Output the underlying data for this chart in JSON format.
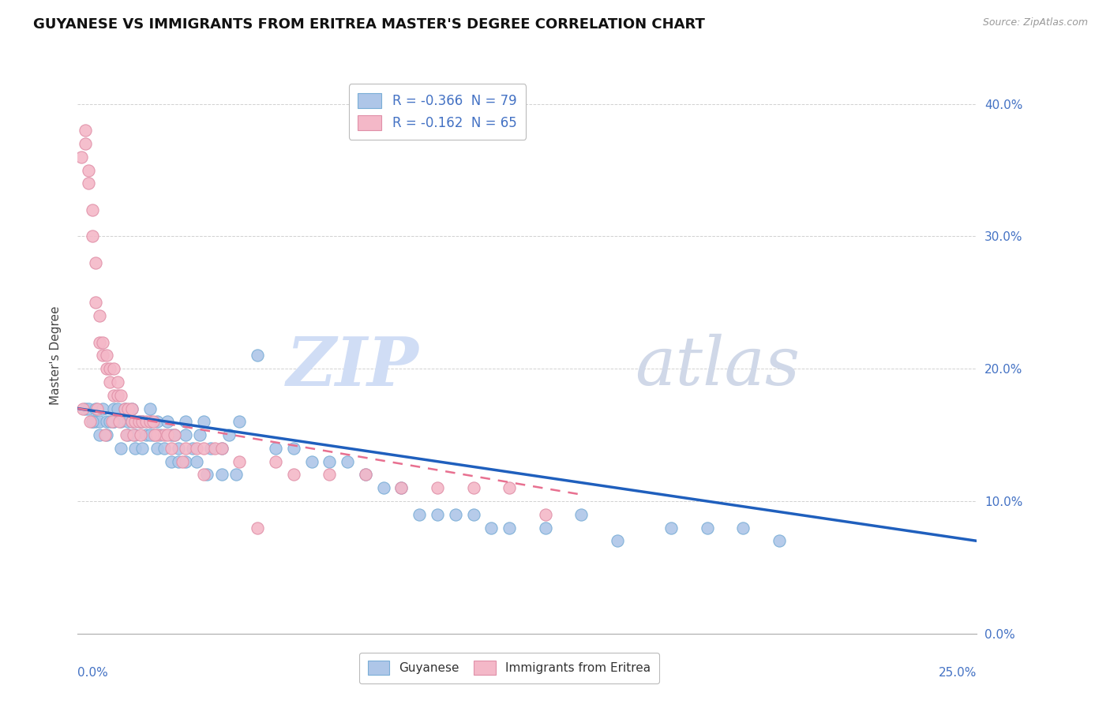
{
  "title": "GUYANESE VS IMMIGRANTS FROM ERITREA MASTER'S DEGREE CORRELATION CHART",
  "source": "Source: ZipAtlas.com",
  "ylabel": "Master's Degree",
  "xlim": [
    0.0,
    25.0
  ],
  "ylim": [
    0.0,
    42.0
  ],
  "ytick_labels": [
    "0.0%",
    "10.0%",
    "20.0%",
    "30.0%",
    "40.0%"
  ],
  "ytick_values": [
    0.0,
    10.0,
    20.0,
    30.0,
    40.0
  ],
  "legend_entries": [
    {
      "label": "R = -0.366  N = 79",
      "color": "#aec6e8"
    },
    {
      "label": "R = -0.162  N = 65",
      "color": "#f4b8c1"
    }
  ],
  "legend_label_guyanese": "Guyanese",
  "legend_label_eritrea": "Immigrants from Eritrea",
  "scatter_blue_x": [
    0.2,
    0.3,
    0.4,
    0.5,
    0.5,
    0.6,
    0.7,
    0.8,
    0.9,
    1.0,
    1.0,
    1.1,
    1.2,
    1.3,
    1.4,
    1.5,
    1.5,
    1.6,
    1.7,
    1.8,
    1.9,
    2.0,
    2.0,
    2.1,
    2.2,
    2.3,
    2.5,
    2.6,
    2.7,
    2.8,
    3.0,
    3.0,
    3.2,
    3.4,
    3.5,
    3.7,
    4.0,
    4.2,
    4.5,
    5.0,
    5.5,
    6.0,
    6.5,
    7.0,
    7.5,
    8.0,
    8.5,
    9.0,
    9.5,
    10.0,
    10.5,
    11.0,
    11.5,
    12.0,
    13.0,
    14.0,
    15.0,
    16.5,
    17.5,
    18.5,
    19.5,
    0.4,
    0.6,
    0.8,
    1.0,
    1.2,
    1.4,
    1.6,
    1.8,
    2.0,
    2.2,
    2.4,
    2.6,
    2.8,
    3.0,
    3.3,
    3.6,
    4.0,
    4.4
  ],
  "scatter_blue_y": [
    17,
    17,
    16,
    17,
    16,
    16,
    17,
    16,
    16,
    17,
    16,
    17,
    16,
    17,
    16,
    16,
    17,
    15,
    16,
    16,
    15,
    16,
    17,
    15,
    16,
    15,
    16,
    15,
    15,
    14,
    16,
    15,
    14,
    15,
    16,
    14,
    14,
    15,
    16,
    21,
    14,
    14,
    13,
    13,
    13,
    12,
    11,
    11,
    9,
    9,
    9,
    9,
    8,
    8,
    8,
    9,
    7,
    8,
    8,
    8,
    7,
    16,
    15,
    15,
    16,
    14,
    15,
    14,
    14,
    15,
    14,
    14,
    13,
    13,
    13,
    13,
    12,
    12,
    12
  ],
  "scatter_pink_x": [
    0.1,
    0.2,
    0.2,
    0.3,
    0.3,
    0.4,
    0.4,
    0.5,
    0.5,
    0.6,
    0.6,
    0.7,
    0.7,
    0.8,
    0.8,
    0.9,
    0.9,
    1.0,
    1.0,
    1.1,
    1.1,
    1.2,
    1.3,
    1.4,
    1.5,
    1.5,
    1.6,
    1.7,
    1.8,
    1.9,
    2.0,
    2.1,
    2.2,
    2.4,
    2.5,
    2.7,
    3.0,
    3.3,
    3.5,
    3.8,
    4.0,
    4.5,
    5.5,
    6.0,
    7.0,
    8.0,
    9.0,
    10.0,
    11.0,
    12.0,
    13.0,
    0.15,
    0.35,
    0.55,
    0.75,
    0.95,
    1.15,
    1.35,
    1.55,
    1.75,
    2.15,
    2.6,
    2.9,
    3.5,
    5.0
  ],
  "scatter_pink_y": [
    36,
    38,
    37,
    35,
    34,
    32,
    30,
    28,
    25,
    24,
    22,
    22,
    21,
    20,
    21,
    20,
    19,
    18,
    20,
    18,
    19,
    18,
    17,
    17,
    16,
    17,
    16,
    16,
    16,
    16,
    16,
    16,
    15,
    15,
    15,
    15,
    14,
    14,
    14,
    14,
    14,
    13,
    13,
    12,
    12,
    12,
    11,
    11,
    11,
    11,
    9,
    17,
    16,
    17,
    15,
    16,
    16,
    15,
    15,
    15,
    15,
    14,
    13,
    12,
    8
  ],
  "trend_blue_x0": 0.0,
  "trend_blue_x1": 25.0,
  "trend_blue_y0": 17.0,
  "trend_blue_y1": 7.0,
  "trend_pink_x0": 0.0,
  "trend_pink_x1": 14.0,
  "trend_pink_y0": 17.0,
  "trend_pink_y1": 10.5,
  "blue_line_color": "#1f5fbd",
  "pink_line_color": "#e87090",
  "blue_dot_color": "#aec6e8",
  "blue_dot_edge": "#7aaed6",
  "pink_dot_color": "#f4b8c8",
  "pink_dot_edge": "#e090a8",
  "background_color": "#ffffff",
  "grid_color": "#cccccc",
  "title_color": "#111111",
  "axis_label_color": "#4472c4",
  "title_fontsize": 13,
  "source_fontsize": 9,
  "watermark_zip_color": "#d0ddf5",
  "watermark_atlas_color": "#d0d8e8"
}
